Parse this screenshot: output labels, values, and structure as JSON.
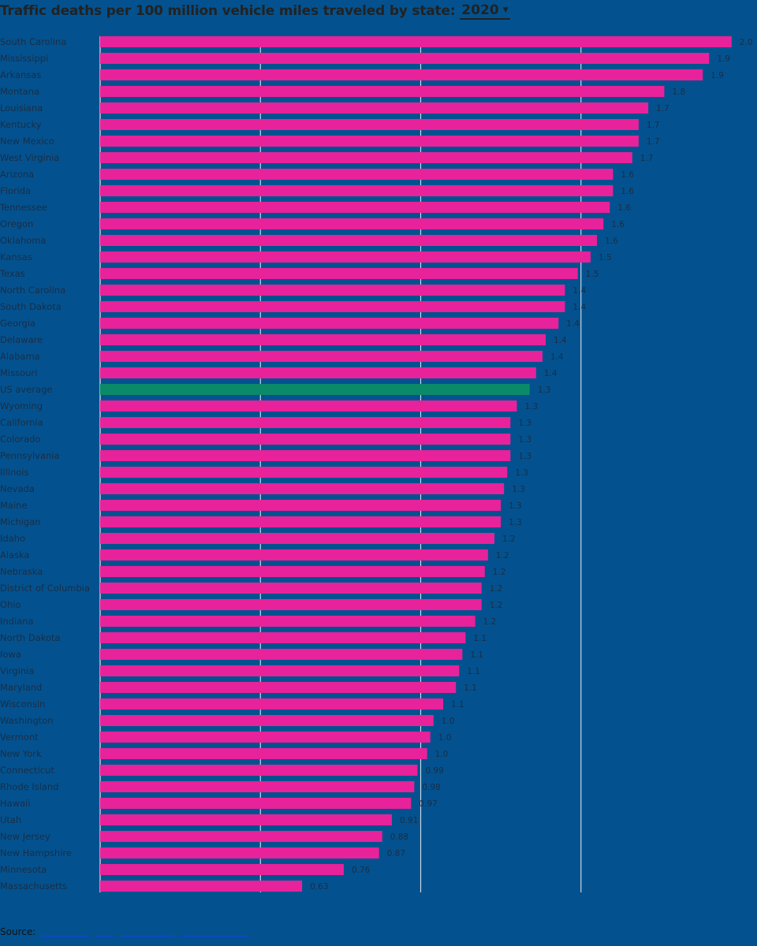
{
  "header": {
    "title": "Traffic deaths per 100 million vehicle miles traveled by state:",
    "year_selected": "2020"
  },
  "footer": {
    "source_label": "Source:"
  },
  "colors": {
    "background": "#03528f",
    "bar": "#e8229a",
    "highlight_bar": "#0b8a6a",
    "gridline": "#c9d6e4",
    "axis": "#e6e6e6"
  },
  "chart_data": {
    "type": "bar",
    "orientation": "horizontal",
    "title": "Traffic deaths per 100 million vehicle miles traveled by state:",
    "highlight_category": "US average",
    "xlim": [
      0,
      2.0
    ],
    "gridlines": true,
    "categories": [
      "South Carolina",
      "Mississippi",
      "Arkansas",
      "Montana",
      "Louisiana",
      "Kentucky",
      "New Mexico",
      "West Virginia",
      "Arizona",
      "Florida",
      "Tennessee",
      "Oregon",
      "Oklahoma",
      "Kansas",
      "Texas",
      "North Carolina",
      "South Dakota",
      "Georgia",
      "Delaware",
      "Alabama",
      "Missouri",
      "US average",
      "Wyoming",
      "California",
      "Colorado",
      "Pennsylvania",
      "Illinois",
      "Nevada",
      "Maine",
      "Michigan",
      "Idaho",
      "Alaska",
      "Nebraska",
      "District of Columbia",
      "Ohio",
      "Indiana",
      "North Dakota",
      "Iowa",
      "Virginia",
      "Maryland",
      "Wisconsin",
      "Washington",
      "Vermont",
      "New York",
      "Connecticut",
      "Rhode Island",
      "Hawaii",
      "Utah",
      "New Jersey",
      "New Hampshire",
      "Minnesota",
      "Massachusetts"
    ],
    "values": [
      1.97,
      1.9,
      1.88,
      1.76,
      1.71,
      1.68,
      1.68,
      1.66,
      1.6,
      1.6,
      1.59,
      1.57,
      1.55,
      1.53,
      1.49,
      1.45,
      1.45,
      1.43,
      1.39,
      1.38,
      1.36,
      1.34,
      1.3,
      1.28,
      1.28,
      1.28,
      1.27,
      1.26,
      1.25,
      1.25,
      1.23,
      1.21,
      1.2,
      1.19,
      1.19,
      1.17,
      1.14,
      1.13,
      1.12,
      1.11,
      1.07,
      1.04,
      1.03,
      1.02,
      0.99,
      0.98,
      0.97,
      0.91,
      0.88,
      0.87,
      0.76,
      0.63
    ],
    "value_labels": [
      "2.0",
      "1.9",
      "1.9",
      "1.8",
      "1.7",
      "1.7",
      "1.7",
      "1.7",
      "1.6",
      "1.6",
      "1.6",
      "1.6",
      "1.6",
      "1.5",
      "1.5",
      "1.4",
      "1.4",
      "1.4",
      "1.4",
      "1.4",
      "1.4",
      "1.3",
      "1.3",
      "1.3",
      "1.3",
      "1.3",
      "1.3",
      "1.3",
      "1.3",
      "1.3",
      "1.2",
      "1.2",
      "1.2",
      "1.2",
      "1.2",
      "1.2",
      "1.1",
      "1.1",
      "1.1",
      "1.1",
      "1.1",
      "1.0",
      "1.0",
      "1.0",
      "0.99",
      "0.98",
      "0.97",
      "0.91",
      "0.88",
      "0.87",
      "0.76",
      "0.63"
    ]
  }
}
